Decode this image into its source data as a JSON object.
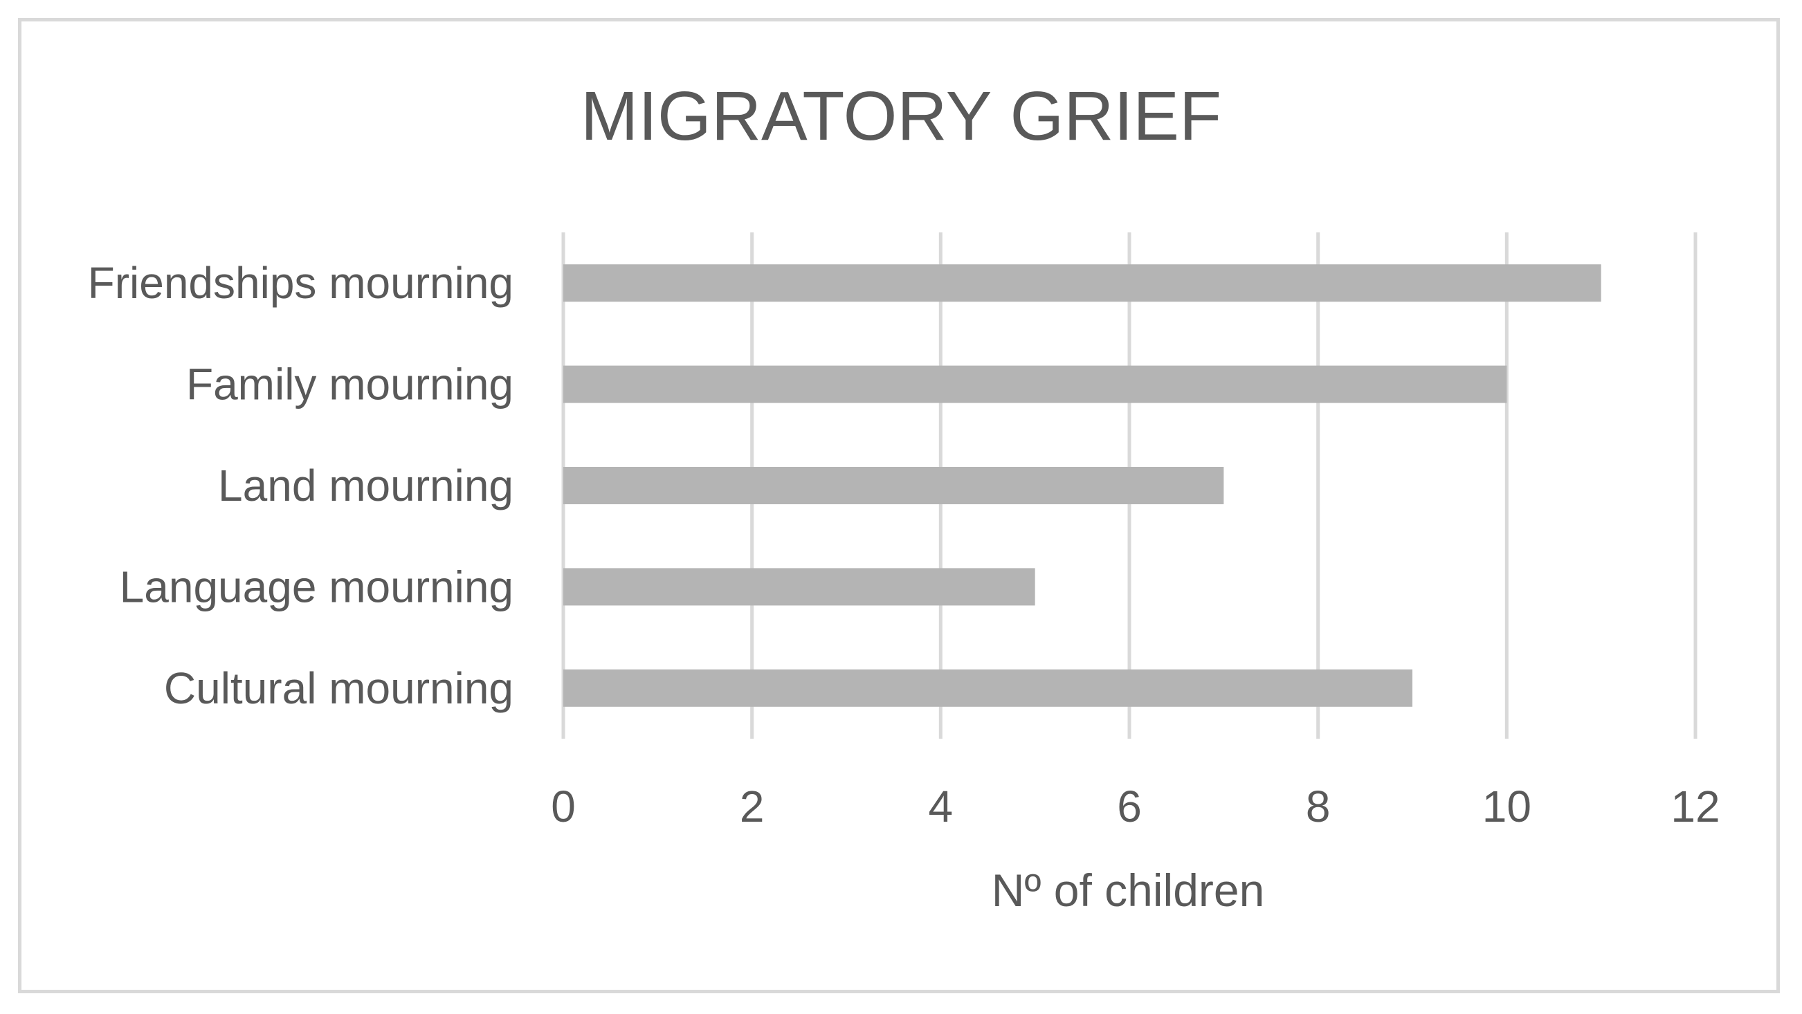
{
  "chart_data": {
    "type": "bar",
    "orientation": "horizontal",
    "title": "MIGRATORY GRIEF",
    "xlabel": "Nº of children",
    "ylabel": "",
    "categories": [
      "Friendships mourning",
      "Family mourning",
      "Land mourning",
      "Language mourning",
      "Cultural mourning"
    ],
    "values": [
      11,
      10,
      7,
      5,
      9
    ],
    "xlim": [
      0,
      12
    ],
    "xticks": [
      "0",
      "2",
      "4",
      "6",
      "8",
      "10",
      "12"
    ],
    "grid": "vertical",
    "legend": "none",
    "colors": {
      "bar": "#b4b4b4",
      "grid": "#d9d9d9",
      "text": "#595959",
      "frame": "#d9d9d9"
    }
  }
}
